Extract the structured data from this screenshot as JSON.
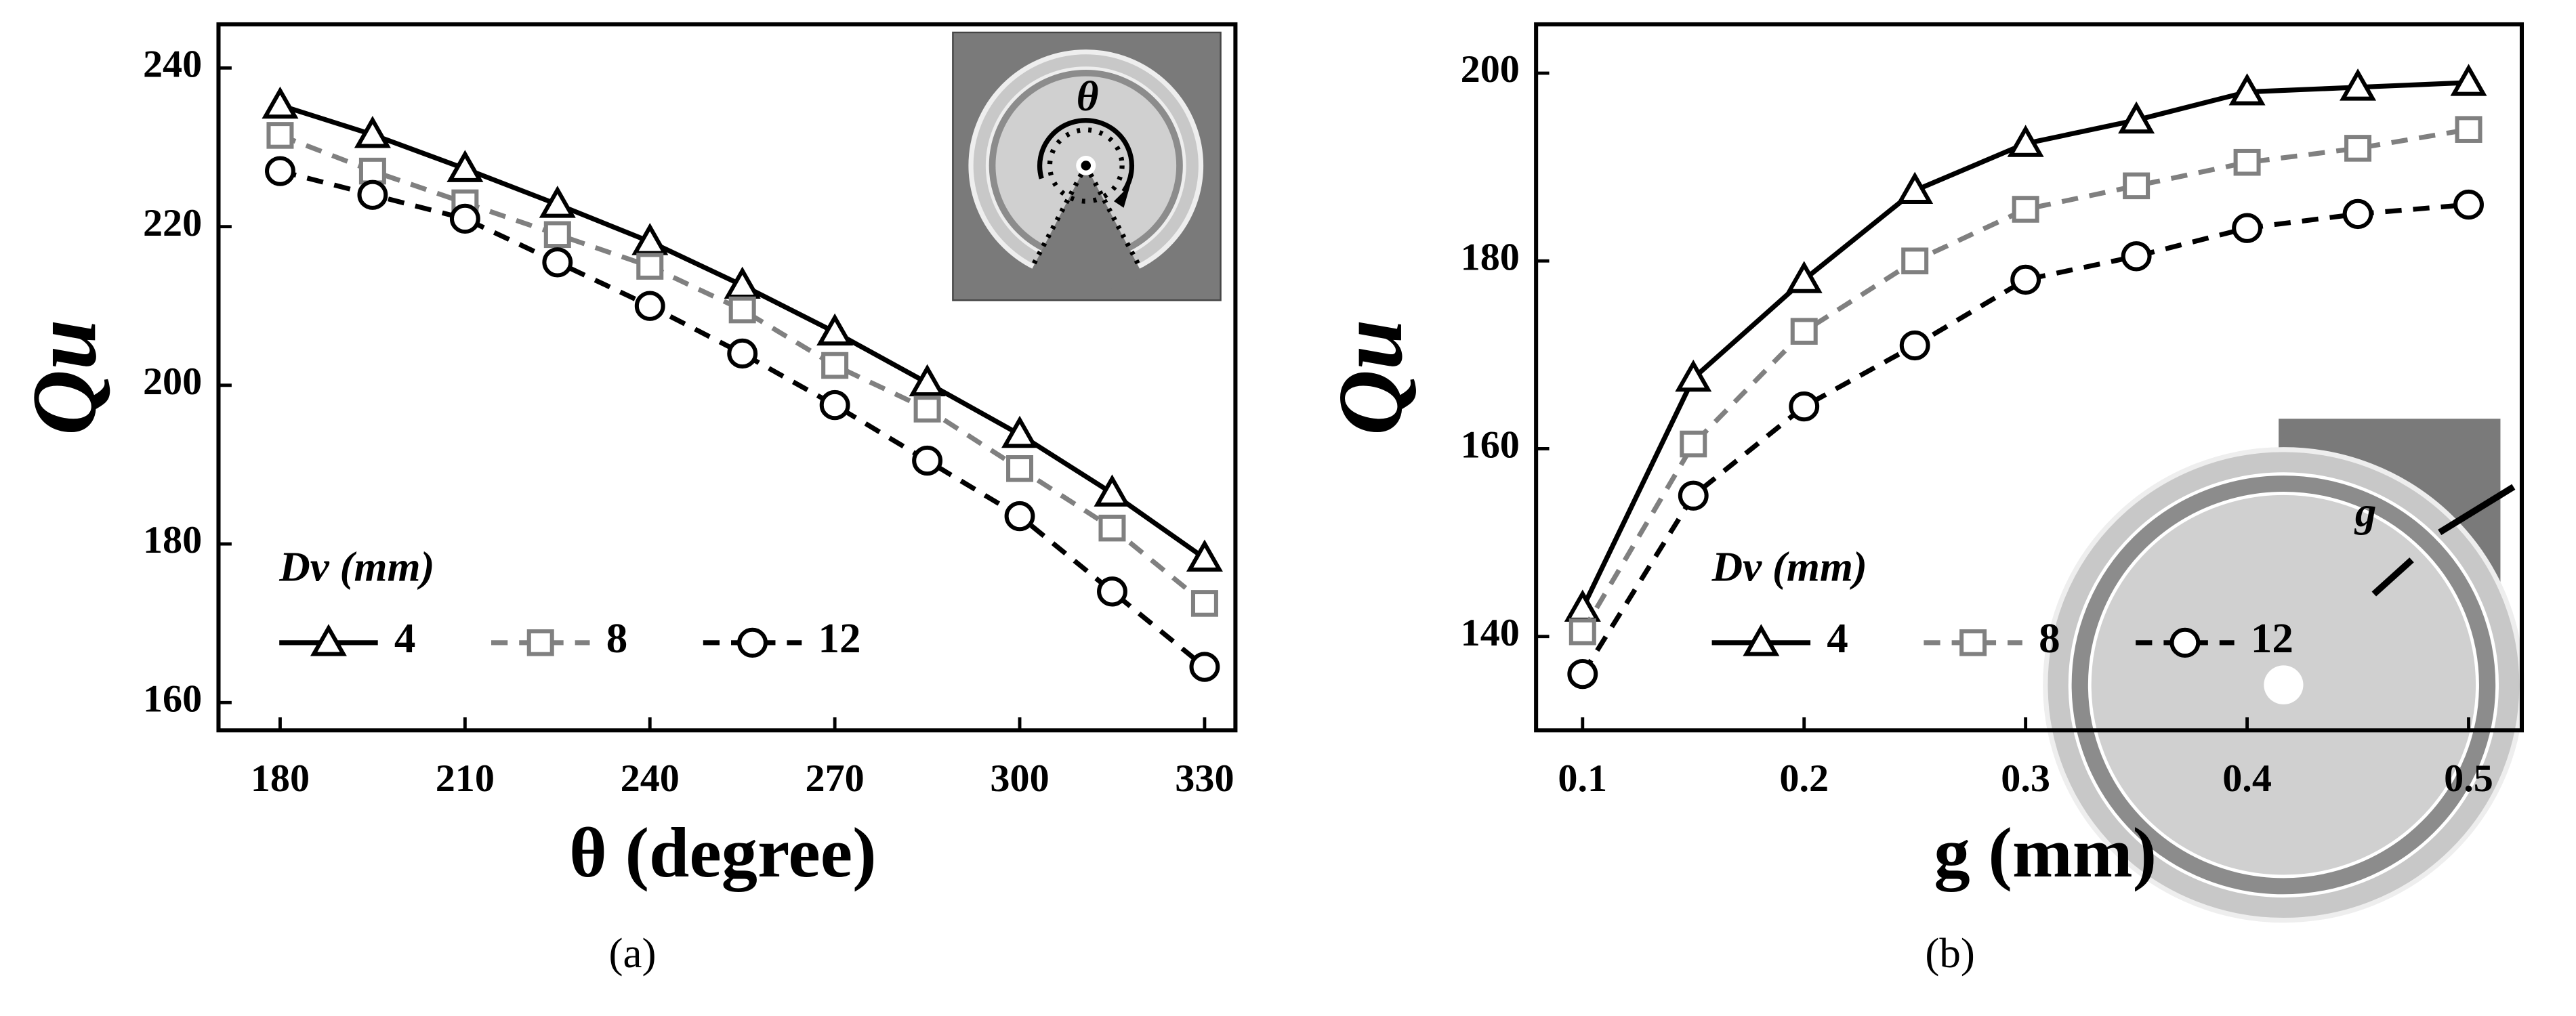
{
  "chart_data": [
    {
      "type": "line",
      "caption": "(a)",
      "x_label": "θ (degree)",
      "y_label": "Qu",
      "legend_title": "Dv (mm)",
      "legend": "lower left",
      "inset_label": "θ",
      "x": [
        180,
        195,
        210,
        225,
        240,
        255,
        270,
        285,
        300,
        315,
        330
      ],
      "xlim": [
        170,
        335
      ],
      "xticks": [
        180,
        210,
        240,
        270,
        300,
        330
      ],
      "ylim": [
        156.5,
        245.5
      ],
      "yticks": [
        160,
        180,
        200,
        220,
        240
      ],
      "series": [
        {
          "name": "4",
          "color": "#000000",
          "dash": "solid",
          "marker": "triangle",
          "values": [
            235.3,
            231.6,
            227.3,
            222.8,
            218.1,
            212.6,
            206.7,
            200.3,
            193.8,
            186.4,
            178.2
          ]
        },
        {
          "name": "8",
          "color": "#808080",
          "dash": "dashed",
          "marker": "square",
          "values": [
            231.5,
            227,
            223,
            219,
            215,
            209.5,
            202.5,
            197,
            189.5,
            182,
            172.5
          ]
        },
        {
          "name": "12",
          "color": "#000000",
          "dash": "dashed",
          "marker": "circle",
          "values": [
            227,
            224,
            221,
            215.5,
            210,
            204,
            197.5,
            190.5,
            183.5,
            174,
            164.5
          ]
        }
      ]
    },
    {
      "type": "line",
      "caption": "(b)",
      "x_label": "g (mm)",
      "y_label": "Qu",
      "legend_title": "Dv (mm)",
      "legend": "lower left",
      "inset_label": "g",
      "x": [
        0.1,
        0.15,
        0.2,
        0.25,
        0.3,
        0.35,
        0.4,
        0.45,
        0.5
      ],
      "xlim": [
        0.079,
        0.524
      ],
      "xticks": [
        0.1,
        0.2,
        0.3,
        0.4,
        0.5
      ],
      "ylim": [
        130,
        205.2
      ],
      "yticks": [
        140,
        160,
        180,
        200
      ],
      "series": [
        {
          "name": "4",
          "color": "#000000",
          "dash": "solid",
          "marker": "triangle",
          "values": [
            143,
            167.5,
            178,
            187.5,
            192.5,
            195,
            198,
            198.5,
            199
          ]
        },
        {
          "name": "8",
          "color": "#808080",
          "dash": "dashed",
          "marker": "square",
          "values": [
            140.5,
            160.5,
            172.5,
            180,
            185.5,
            188,
            190.5,
            192,
            194
          ]
        },
        {
          "name": "12",
          "color": "#000000",
          "dash": "dashed",
          "marker": "circle",
          "values": [
            136,
            155,
            164.5,
            171,
            178,
            180.5,
            183.5,
            185,
            186
          ]
        }
      ]
    }
  ]
}
